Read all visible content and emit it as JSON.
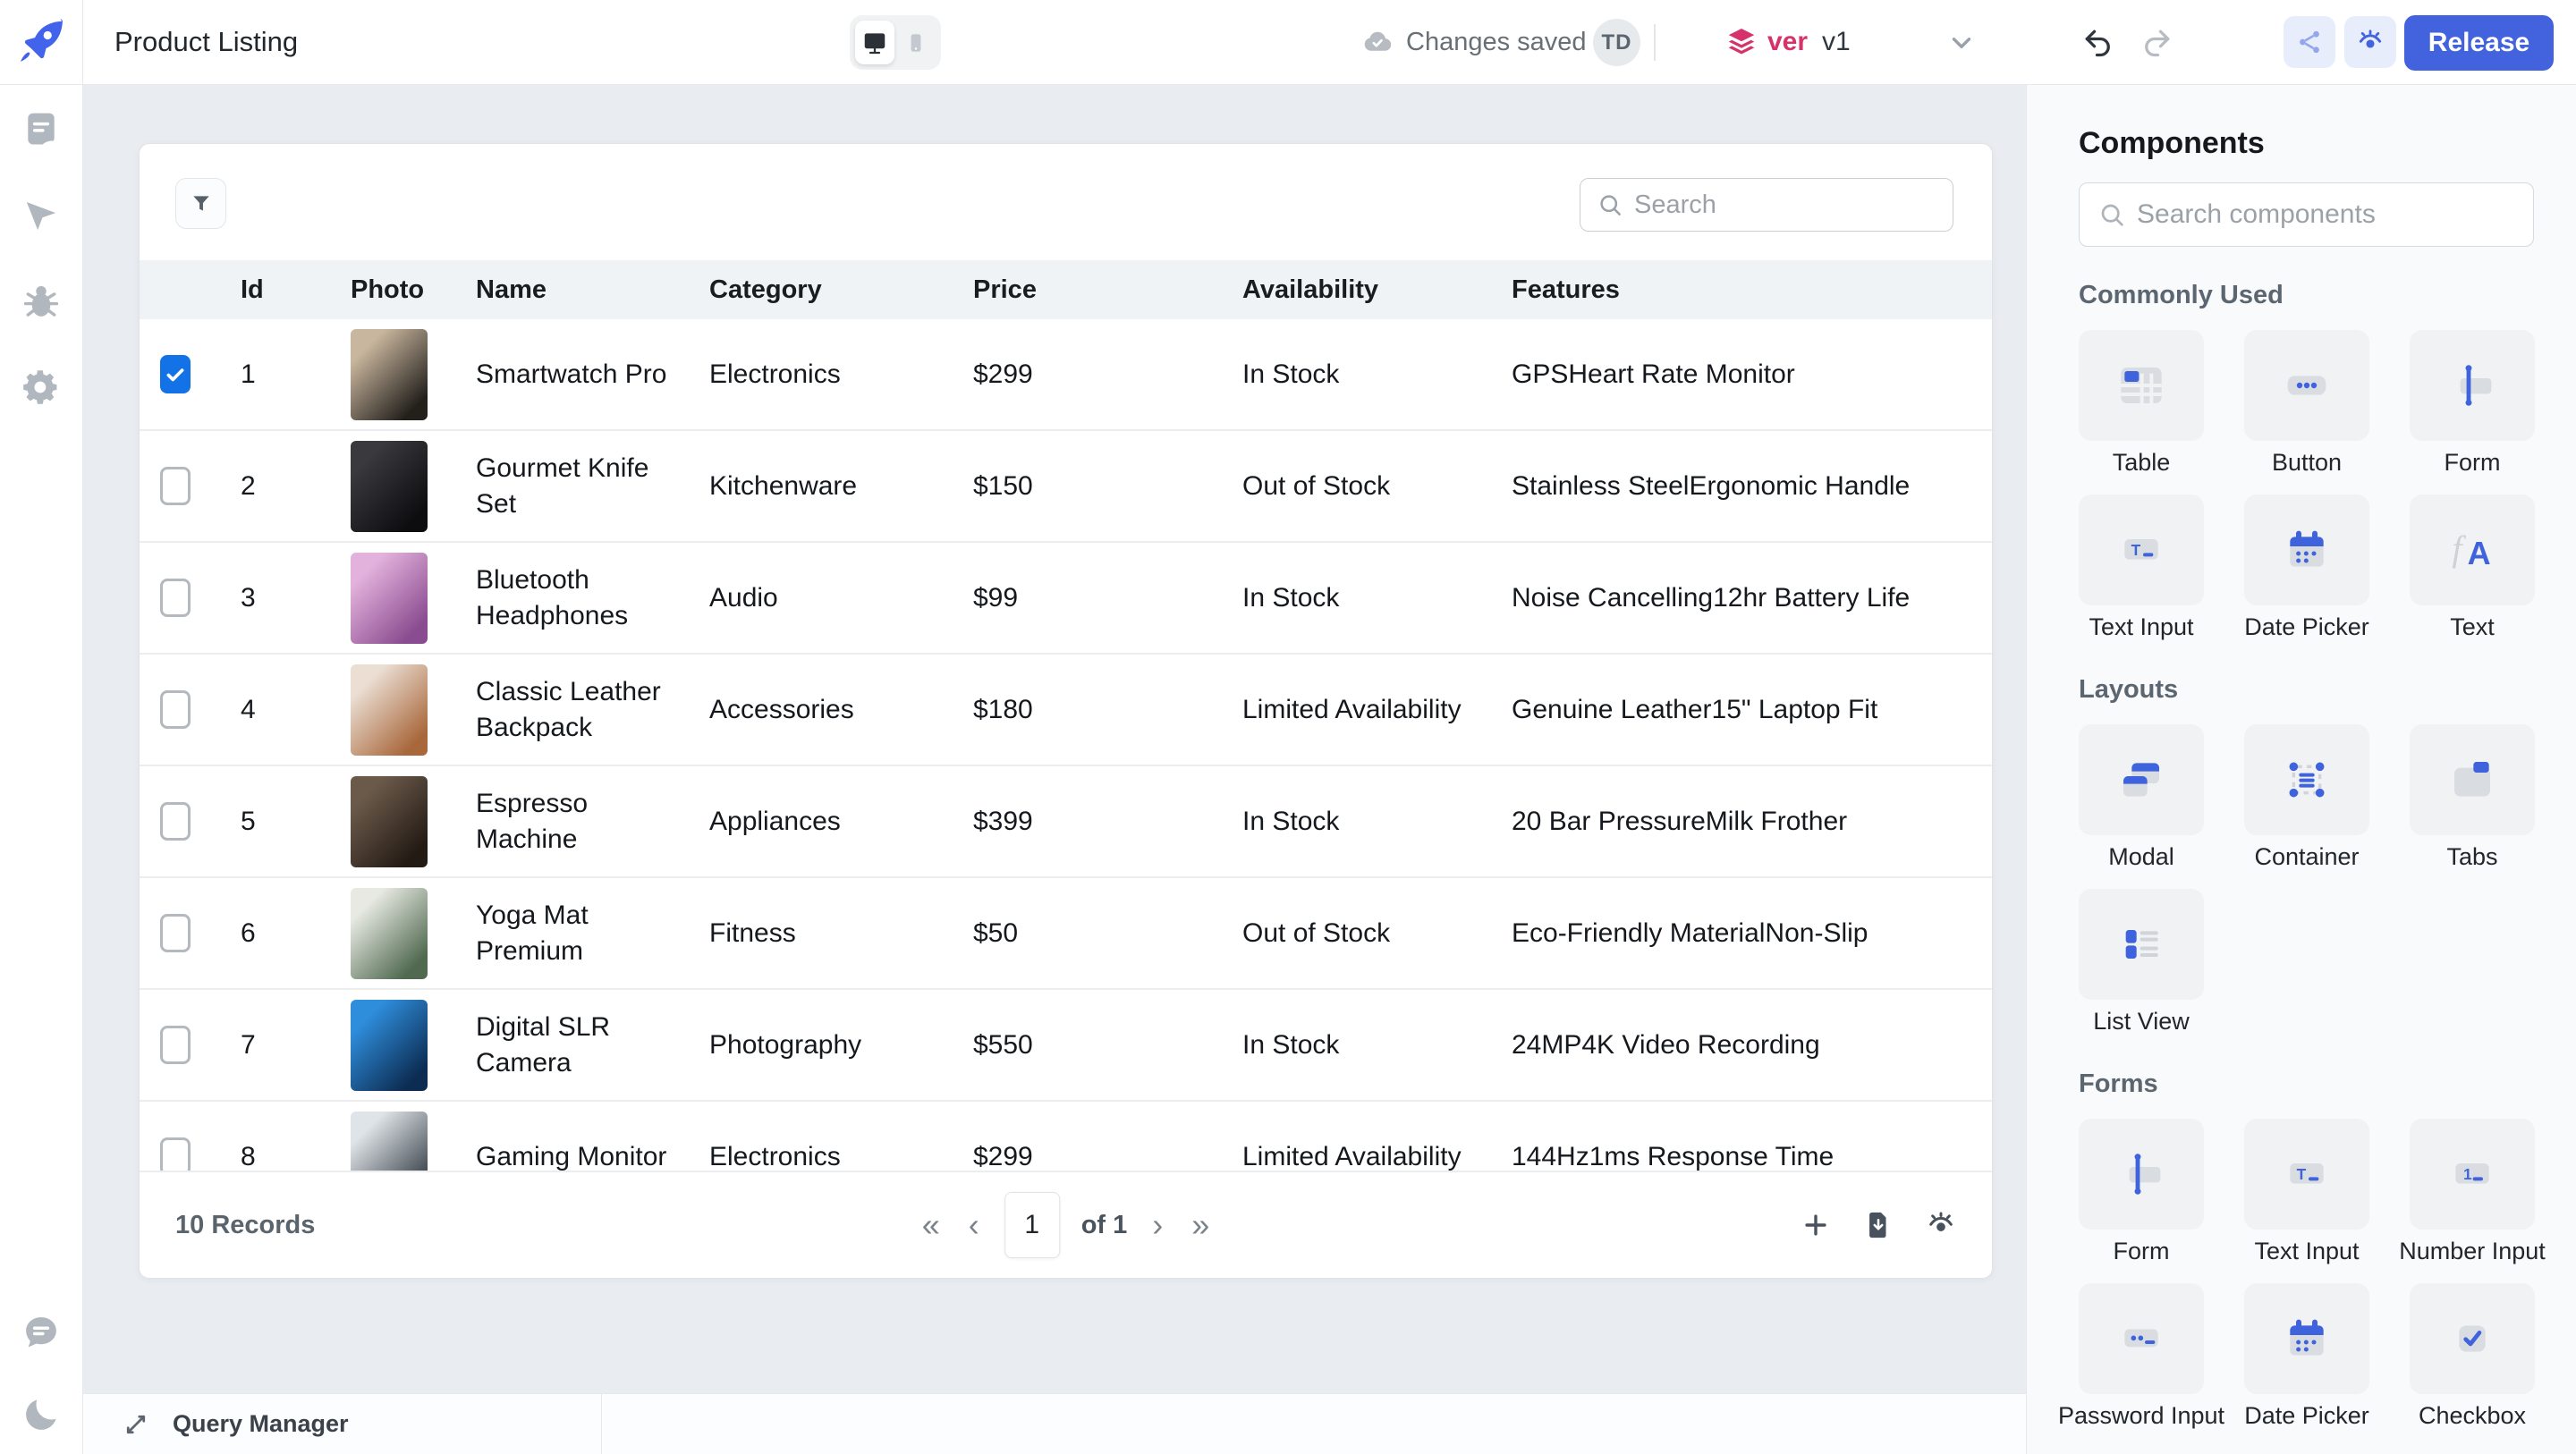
{
  "colors": {
    "accent": "#4263DD",
    "accent_soft": "#E8EDFB",
    "version_pink": "#D6336C",
    "canvas_bg": "#E9EDF1",
    "panel_bg": "#F9FAFB",
    "border": "#E6E8EB",
    "table_header_bg": "#F0F3F5",
    "checkbox_checked": "#1272E6"
  },
  "topbar": {
    "app_title": "Product Listing",
    "save_status": "Changes saved",
    "avatar_initials": "TD",
    "version_prefix": "ver",
    "version_value": "v1",
    "release_label": "Release"
  },
  "sidebar": {
    "top_icons": [
      "pages",
      "inspector",
      "debugger",
      "settings"
    ],
    "bottom_icons": [
      "comment",
      "moon"
    ]
  },
  "table": {
    "search_placeholder": "Search",
    "columns": [
      "Id",
      "Photo",
      "Name",
      "Category",
      "Price",
      "Availability",
      "Features"
    ],
    "rows": [
      {
        "checked": true,
        "id": "1",
        "name": "Smartwatch Pro",
        "category": "Electronics",
        "price": "$299",
        "availability": "In Stock",
        "features": "GPSHeart Rate Monitor",
        "photo_from": "#C9B69E",
        "photo_to": "#23201C"
      },
      {
        "checked": false,
        "id": "2",
        "name": "Gourmet Knife Set",
        "category": "Kitchenware",
        "price": "$150",
        "availability": "Out of Stock",
        "features": "Stainless SteelErgonomic Handle",
        "photo_from": "#3A3A3E",
        "photo_to": "#0D0D10"
      },
      {
        "checked": false,
        "id": "3",
        "name": "Bluetooth Headphones",
        "category": "Audio",
        "price": "$99",
        "availability": "In Stock",
        "features": "Noise Cancelling12hr Battery Life",
        "photo_from": "#E3B2DC",
        "photo_to": "#8A4C90"
      },
      {
        "checked": false,
        "id": "4",
        "name": "Classic Leather Backpack",
        "category": "Accessories",
        "price": "$180",
        "availability": "Limited Availability",
        "features": "Genuine Leather15\" Laptop Fit",
        "photo_from": "#EBDFD4",
        "photo_to": "#A9683C"
      },
      {
        "checked": false,
        "id": "5",
        "name": "Espresso Machine",
        "category": "Appliances",
        "price": "$399",
        "availability": "In Stock",
        "features": "20 Bar PressureMilk Frother",
        "photo_from": "#6B5A4A",
        "photo_to": "#231A14"
      },
      {
        "checked": false,
        "id": "6",
        "name": "Yoga Mat Premium",
        "category": "Fitness",
        "price": "$50",
        "availability": "Out of Stock",
        "features": "Eco-Friendly MaterialNon-Slip",
        "photo_from": "#E7E9E2",
        "photo_to": "#50694F"
      },
      {
        "checked": false,
        "id": "7",
        "name": "Digital SLR Camera",
        "category": "Photography",
        "price": "$550",
        "availability": "In Stock",
        "features": "24MP4K Video Recording",
        "photo_from": "#2F8EDC",
        "photo_to": "#0C2C52"
      },
      {
        "checked": false,
        "id": "8",
        "name": "Gaming Monitor",
        "category": "Electronics",
        "price": "$299",
        "availability": "Limited Availability",
        "features": "144Hz1ms Response Time",
        "photo_from": "#DFE4E8",
        "photo_to": "#3A424A"
      }
    ],
    "footer": {
      "records": "10 Records",
      "page": "1",
      "page_total": "of 1",
      "first_symbol": "«",
      "prev_symbol": "‹",
      "next_symbol": "›",
      "last_symbol": "»"
    }
  },
  "components_panel": {
    "title": "Components",
    "search_placeholder": "Search components",
    "sections": [
      {
        "label": "Commonly Used",
        "items": [
          {
            "label": "Table",
            "icon": "table-comp"
          },
          {
            "label": "Button",
            "icon": "button-comp"
          },
          {
            "label": "Form",
            "icon": "form-comp"
          },
          {
            "label": "Text Input",
            "icon": "text-input-comp"
          },
          {
            "label": "Date Picker",
            "icon": "date-picker-comp"
          },
          {
            "label": "Text",
            "icon": "text-comp"
          }
        ]
      },
      {
        "label": "Layouts",
        "items": [
          {
            "label": "Modal",
            "icon": "modal-comp"
          },
          {
            "label": "Container",
            "icon": "container-comp"
          },
          {
            "label": "Tabs",
            "icon": "tabs-comp"
          },
          {
            "label": "List View",
            "icon": "list-view-comp"
          }
        ]
      },
      {
        "label": "Forms",
        "items": [
          {
            "label": "Form",
            "icon": "form-comp"
          },
          {
            "label": "Text Input",
            "icon": "text-input-comp"
          },
          {
            "label": "Number Input",
            "icon": "number-input-comp"
          },
          {
            "label": "Password Input",
            "icon": "password-input-comp"
          },
          {
            "label": "Date Picker",
            "icon": "date-picker-comp"
          },
          {
            "label": "Checkbox",
            "icon": "checkbox-comp"
          }
        ]
      }
    ]
  },
  "bottom_bar": {
    "query_manager_label": "Query Manager"
  }
}
